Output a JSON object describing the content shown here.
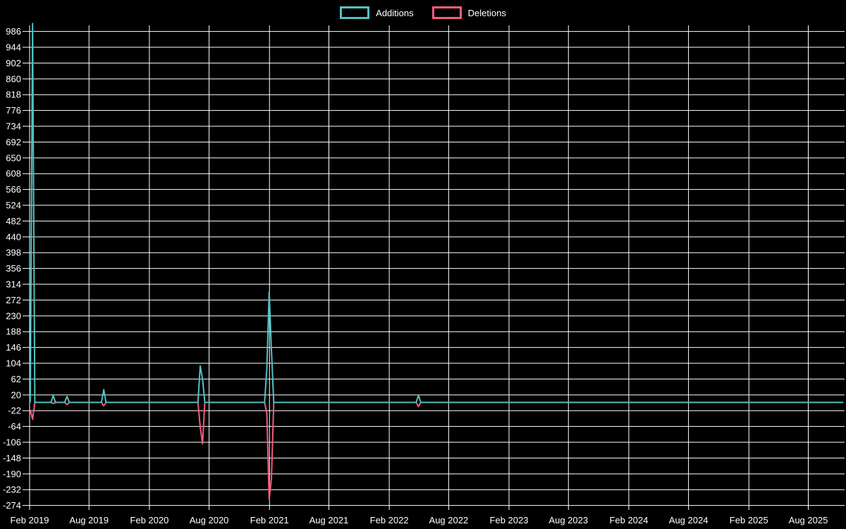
{
  "page": {
    "background": "#000000",
    "grid_color": "#ffffff",
    "text_color": "#ffffff"
  },
  "legend": {
    "items": [
      {
        "label": "Additions",
        "color": "#52c1c3"
      },
      {
        "label": "Deletions",
        "color": "#f25d7e"
      }
    ]
  },
  "chart_data": {
    "type": "line",
    "title": "",
    "xlabel": "",
    "ylabel": "",
    "grid": true,
    "legend_position": "top-center",
    "background": "#000000",
    "y_ticks": [
      986,
      944,
      902,
      860,
      818,
      776,
      734,
      692,
      650,
      608,
      566,
      524,
      482,
      440,
      398,
      356,
      314,
      272,
      230,
      188,
      146,
      104,
      62,
      20,
      -22,
      -64,
      -106,
      -148,
      -190,
      -232,
      -274
    ],
    "y_tick_step": 42,
    "ylim": [
      -295,
      1011
    ],
    "x_ticks": [
      {
        "date": "2019-02-01",
        "label": "Feb 2019"
      },
      {
        "date": "2019-08-01",
        "label": "Aug 2019"
      },
      {
        "date": "2020-02-01",
        "label": "Feb 2020"
      },
      {
        "date": "2020-08-01",
        "label": "Aug 2020"
      },
      {
        "date": "2021-02-01",
        "label": "Feb 2021"
      },
      {
        "date": "2021-08-01",
        "label": "Aug 2021"
      },
      {
        "date": "2022-02-01",
        "label": "Feb 2022"
      },
      {
        "date": "2022-08-01",
        "label": "Aug 2022"
      },
      {
        "date": "2023-02-01",
        "label": "Feb 2023"
      },
      {
        "date": "2023-08-01",
        "label": "Aug 2023"
      },
      {
        "date": "2024-02-01",
        "label": "Feb 2024"
      },
      {
        "date": "2024-08-01",
        "label": "Aug 2024"
      },
      {
        "date": "2025-02-01",
        "label": "Feb 2025"
      },
      {
        "date": "2025-08-01",
        "label": "Aug 2025"
      }
    ],
    "series": [
      {
        "name": "Additions",
        "key": "additions",
        "color": "#52c1c3"
      },
      {
        "name": "Deletions",
        "key": "deletions",
        "color": "#f25d7e"
      }
    ],
    "points": [
      {
        "date": "2019-02-03",
        "additions": 0,
        "deletions": -20
      },
      {
        "date": "2019-02-10",
        "additions": 1007,
        "deletions": -45
      },
      {
        "date": "2019-02-17",
        "additions": 0,
        "deletions": 0
      },
      {
        "date": "2019-04-07",
        "additions": 0,
        "deletions": 0
      },
      {
        "date": "2019-04-14",
        "additions": 18,
        "deletions": -3
      },
      {
        "date": "2019-04-21",
        "additions": 0,
        "deletions": 0
      },
      {
        "date": "2019-05-19",
        "additions": 0,
        "deletions": 0
      },
      {
        "date": "2019-05-26",
        "additions": 16,
        "deletions": -6
      },
      {
        "date": "2019-06-02",
        "additions": 0,
        "deletions": 0
      },
      {
        "date": "2019-09-08",
        "additions": 0,
        "deletions": 0
      },
      {
        "date": "2019-09-15",
        "additions": 34,
        "deletions": -9
      },
      {
        "date": "2019-09-22",
        "additions": 0,
        "deletions": 0
      },
      {
        "date": "2020-06-28",
        "additions": 0,
        "deletions": 0
      },
      {
        "date": "2020-07-05",
        "additions": 97,
        "deletions": -66
      },
      {
        "date": "2020-07-12",
        "additions": 62,
        "deletions": -110
      },
      {
        "date": "2020-07-19",
        "additions": 0,
        "deletions": 0
      },
      {
        "date": "2021-01-17",
        "additions": 0,
        "deletions": 0
      },
      {
        "date": "2021-01-24",
        "additions": 90,
        "deletions": -30
      },
      {
        "date": "2021-01-31",
        "additions": 294,
        "deletions": -258
      },
      {
        "date": "2021-02-07",
        "additions": 140,
        "deletions": -204
      },
      {
        "date": "2021-02-14",
        "additions": 0,
        "deletions": 0
      },
      {
        "date": "2022-04-24",
        "additions": 0,
        "deletions": 0
      },
      {
        "date": "2022-05-01",
        "additions": 19,
        "deletions": -11
      },
      {
        "date": "2022-05-08",
        "additions": 0,
        "deletions": 0
      },
      {
        "date": "2025-11-16",
        "additions": 0,
        "deletions": 0
      }
    ]
  }
}
